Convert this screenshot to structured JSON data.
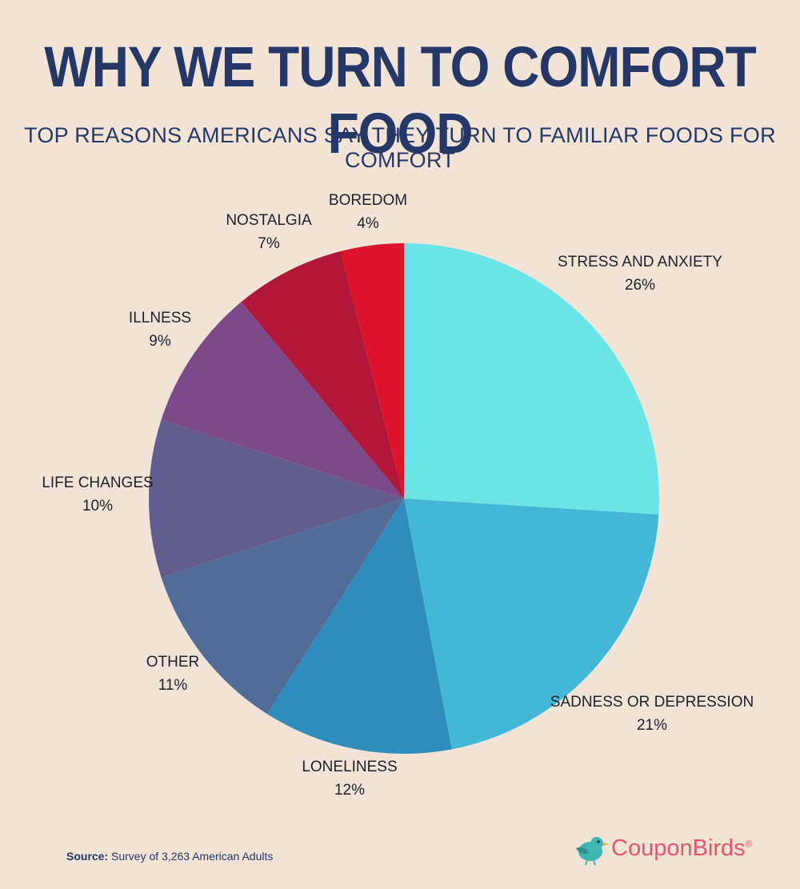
{
  "header": {
    "title": "WHY WE TURN TO COMFORT FOOD",
    "subtitle": "TOP REASONS AMERICANS SAY THEY TURN TO FAMILIAR FOODS FOR COMFORT"
  },
  "chart_data": {
    "type": "pie",
    "title": "WHY WE TURN TO COMFORT FOOD",
    "subtitle": "TOP REASONS AMERICANS SAY THEY TURN TO FAMILIAR FOODS FOR COMFORT",
    "slices": [
      {
        "label": "STRESS AND ANXIETY",
        "value": 26,
        "value_label": "26%",
        "color": "#6be4e8"
      },
      {
        "label": "SADNESS OR DEPRESSION",
        "value": 21,
        "value_label": "21%",
        "color": "#43b7d6"
      },
      {
        "label": "LONELINESS",
        "value": 12,
        "value_label": "12%",
        "color": "#2e8dbc"
      },
      {
        "label": "OTHER",
        "value": 11,
        "value_label": "11%",
        "color": "#4f6d98"
      },
      {
        "label": "LIFE CHANGES",
        "value": 10,
        "value_label": "10%",
        "color": "#625c8f"
      },
      {
        "label": "ILLNESS",
        "value": 9,
        "value_label": "9%",
        "color": "#7d4989"
      },
      {
        "label": "NOSTALGIA",
        "value": 7,
        "value_label": "7%",
        "color": "#b21639"
      },
      {
        "label": "BOREDOM",
        "value": 4,
        "value_label": "4%",
        "color": "#de142c"
      }
    ],
    "start": "12 o'clock",
    "direction": "clockwise"
  },
  "footer": {
    "source_label": "Source:",
    "source_text": "Survey of 3,263 American Adults",
    "brand": "CouponBirds",
    "brand_mark": "®",
    "logo_icon": "bird-icon",
    "brand_color": "#e8556b",
    "logo_icon_color": "#3db6b4"
  }
}
